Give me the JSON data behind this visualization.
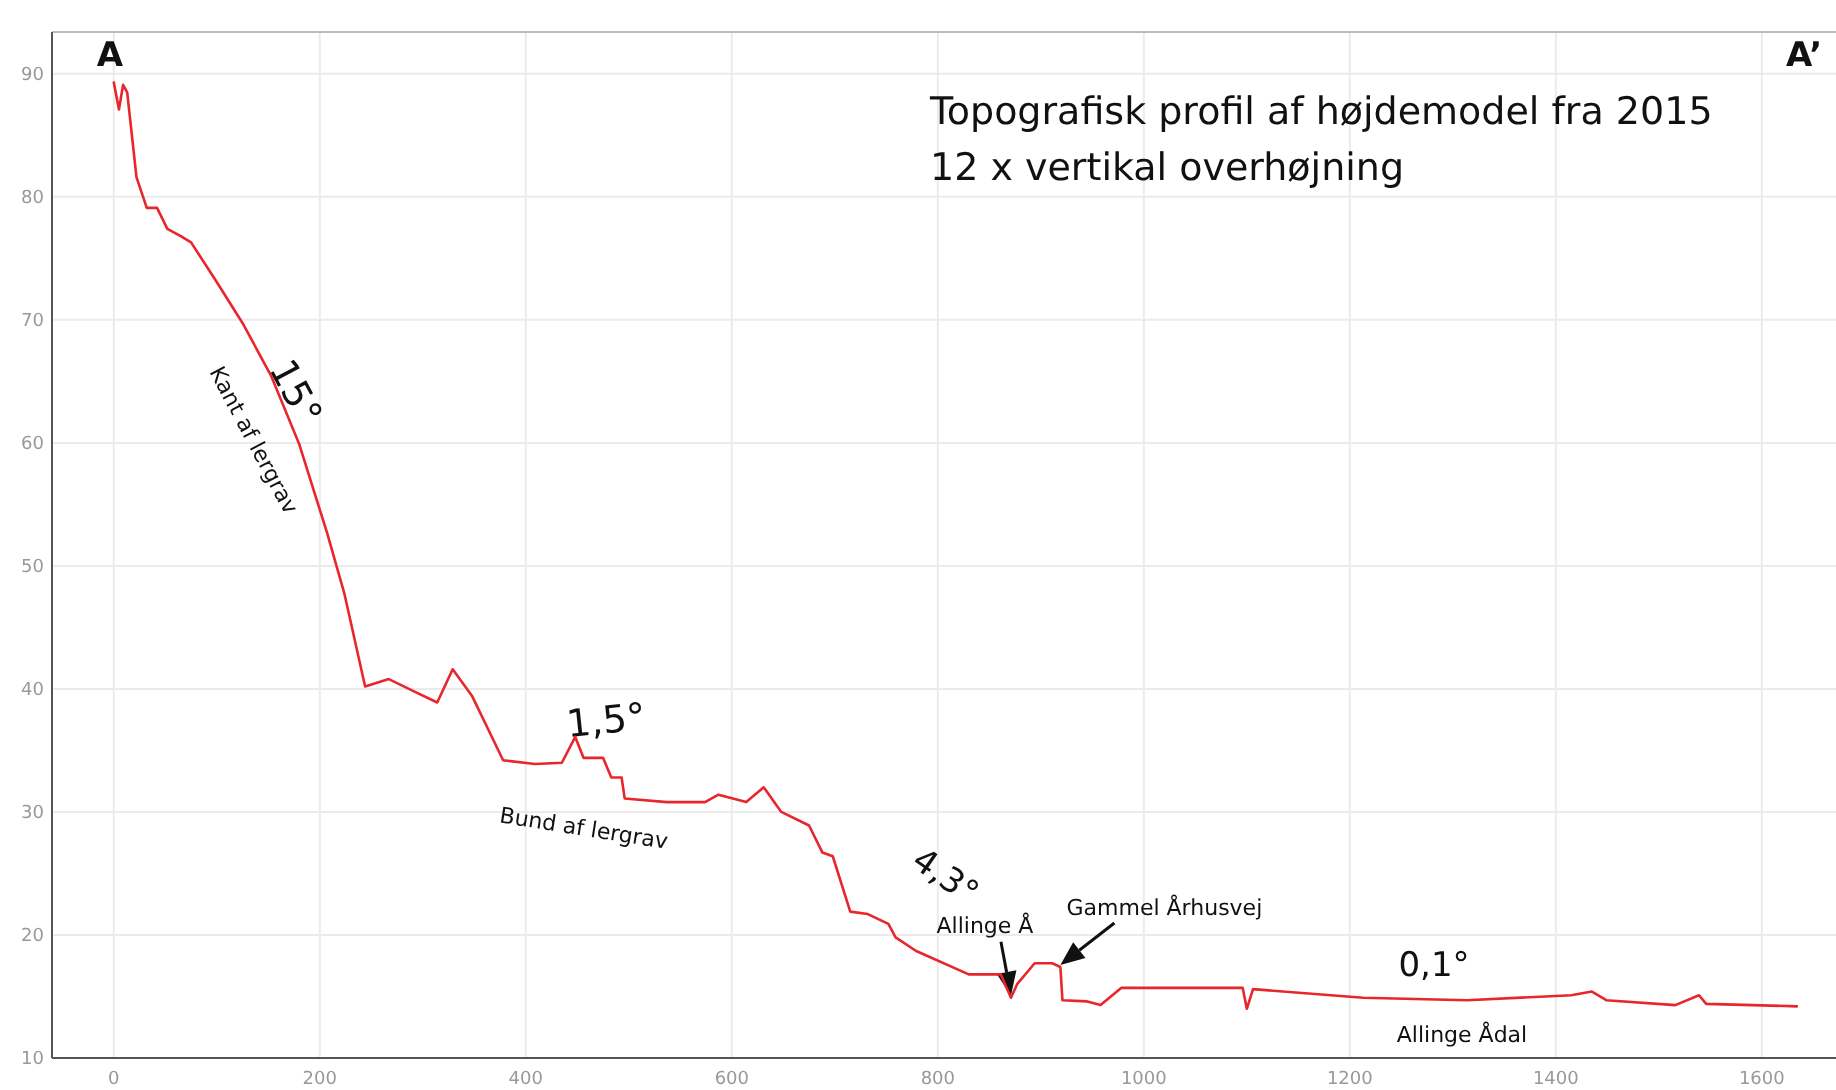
{
  "chart_data": {
    "type": "line",
    "title": "Topografisk profil af højdemodel fra 2015",
    "subtitle": "12 x vertikal overhøjning",
    "xlim": [
      -60,
      1672
    ],
    "ylim": [
      10,
      93.4
    ],
    "xticks": [
      0,
      200,
      400,
      600,
      800,
      1000,
      1200,
      1400,
      1600
    ],
    "yticks": [
      10,
      20,
      30,
      40,
      50,
      60,
      70,
      80,
      90
    ],
    "grid": true,
    "series": [
      {
        "color": "#e8262b",
        "x": [
          0,
          5,
          9,
          13,
          22,
          32,
          42,
          52,
          65,
          75,
          99,
          126,
          153,
          180,
          207,
          224,
          244,
          267,
          294,
          314,
          329,
          348,
          378,
          409,
          435,
          448,
          456,
          475,
          483,
          493,
          496,
          537,
          574,
          587,
          614,
          631,
          648,
          675,
          688,
          698,
          715,
          732,
          752,
          759,
          779,
          830,
          861,
          871,
          877,
          894,
          911,
          919,
          921,
          945,
          958,
          978,
          1012,
          1096,
          1100,
          1106,
          1213,
          1314,
          1415,
          1435,
          1449,
          1516,
          1539,
          1546,
          1634
        ],
        "values": [
          89.3,
          87.1,
          89.1,
          88.5,
          81.6,
          79.1,
          79.1,
          77.4,
          76.8,
          76.3,
          73.2,
          69.6,
          65.4,
          59.9,
          52.7,
          47.7,
          40.2,
          40.8,
          39.7,
          38.9,
          41.6,
          39.4,
          34.2,
          33.9,
          34.0,
          36.1,
          34.4,
          34.4,
          32.8,
          32.8,
          31.1,
          30.8,
          30.8,
          31.4,
          30.8,
          32.0,
          30.0,
          28.9,
          26.7,
          26.4,
          21.9,
          21.7,
          20.9,
          19.8,
          18.7,
          16.8,
          16.8,
          14.9,
          16.0,
          17.7,
          17.7,
          17.4,
          14.7,
          14.6,
          14.3,
          15.7,
          15.7,
          15.7,
          14.0,
          15.6,
          14.9,
          14.7,
          15.1,
          15.4,
          14.7,
          14.3,
          15.1,
          14.4,
          14.2
        ]
      }
    ],
    "annotations": [
      "A",
      "A’",
      "15°",
      "Kant af lergrav",
      "1,5°",
      "Bund af lergrav",
      "4,3°",
      {
        "text": "Allinge Å",
        "x": 871,
        "y": 14.9
      },
      {
        "text": "Gammel Århusvej",
        "x": 919,
        "y": 17.4
      },
      "0,1°",
      "Allinge Ådal"
    ]
  }
}
